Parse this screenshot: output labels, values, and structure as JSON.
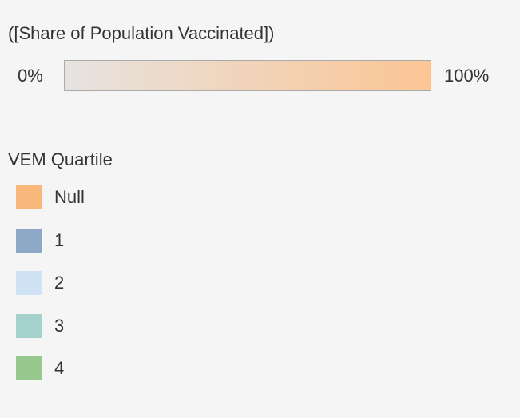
{
  "gradient_legend": {
    "title": "([Share of Population Vaccinated])",
    "min_label": "0%",
    "max_label": "100%",
    "start_color": "#e6e3e0",
    "end_color": "#fcc594"
  },
  "category_legend": {
    "title": "VEM Quartile",
    "items": [
      {
        "label": "Null",
        "color": "#f9b87b"
      },
      {
        "label": "1",
        "color": "#8ea8c8"
      },
      {
        "label": "2",
        "color": "#cfe3f5"
      },
      {
        "label": "3",
        "color": "#a6d2cd"
      },
      {
        "label": "4",
        "color": "#97c88e"
      }
    ]
  }
}
